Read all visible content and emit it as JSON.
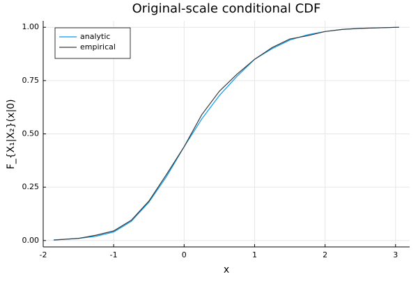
{
  "chart_data": {
    "type": "line",
    "title": "Original-scale conditional CDF",
    "x_label": "x",
    "y_label": "F_{X₁|X₂}(x|0)",
    "x": [
      -1.85,
      -1.5,
      -1.25,
      -1,
      -0.75,
      -0.5,
      -0.25,
      0,
      0.25,
      0.5,
      0.75,
      1,
      1.25,
      1.5,
      1.75,
      2,
      2.25,
      2.5,
      3.05
    ],
    "series": [
      {
        "name": "analytic",
        "color": "#009af9",
        "values": [
          0.003,
          0.01,
          0.02,
          0.04,
          0.09,
          0.18,
          0.3,
          0.44,
          0.57,
          0.68,
          0.77,
          0.85,
          0.9,
          0.94,
          0.965,
          0.98,
          0.99,
          0.995,
          1.0
        ]
      },
      {
        "name": "empirical",
        "color": "#3a3a3a",
        "values": [
          0.002,
          0.01,
          0.025,
          0.045,
          0.095,
          0.185,
          0.31,
          0.44,
          0.59,
          0.7,
          0.78,
          0.85,
          0.905,
          0.945,
          0.96,
          0.98,
          0.99,
          0.995,
          1.0
        ]
      }
    ],
    "xlim": [
      -2,
      3.2
    ],
    "xticks": [
      -2,
      -1,
      0,
      1,
      2,
      3
    ],
    "ylim": [
      -0.03,
      1.03
    ],
    "yticks": [
      {
        "value": 0,
        "label": "0.00"
      },
      {
        "value": 0.25,
        "label": "0.25"
      },
      {
        "value": 0.5,
        "label": "0.50"
      },
      {
        "value": 0.75,
        "label": "0.75"
      },
      {
        "value": 1,
        "label": "1.00"
      }
    ],
    "grid": true,
    "legend": "top-left"
  }
}
